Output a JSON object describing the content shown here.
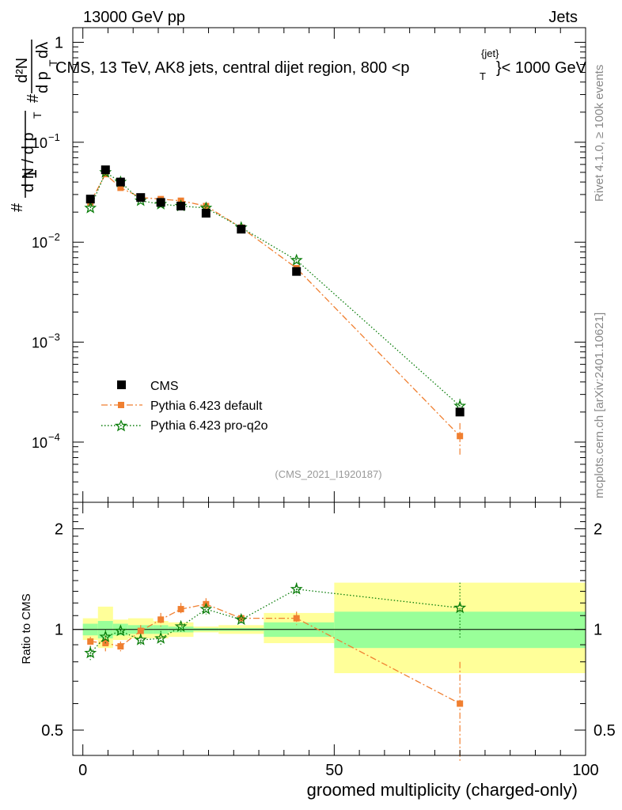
{
  "header": {
    "energy_label": "13000 GeV pp",
    "category_label": "Jets",
    "plot_title": "CMS, 13 TeV, AK8 jets, central dijet region, 800 <p",
    "plot_title_sup": "{jet}",
    "plot_title_sub": "T",
    "plot_title_end": "}< 1000 GeV",
    "watermark": "(CMS_2021_I1920187)",
    "side_label_rivet": "Rivet 4.1.0, ≥ 100k events",
    "side_label_mcplots": "mcplots.cern.ch [arXiv:2401.10621]"
  },
  "y_axis_main": {
    "numerator": "1",
    "denominator": "d N / d p",
    "den_sub": "T",
    "hash1": "#",
    "hash2": "#",
    "d2n": "d²N",
    "dpt": "d p",
    "dpt_sub": "T",
    "dlambda": "dλ",
    "ticks": [
      {
        "value": 1,
        "label": "1"
      },
      {
        "value": 0.1,
        "label": "10",
        "exp": "−1"
      },
      {
        "value": 0.01,
        "label": "10",
        "exp": "−2"
      },
      {
        "value": 0.001,
        "label": "10",
        "exp": "−3"
      },
      {
        "value": 0.0001,
        "label": "10",
        "exp": "−4"
      }
    ]
  },
  "y_axis_ratio": {
    "label": "Ratio to CMS",
    "ticks_left": [
      {
        "value": 2,
        "label": "2"
      },
      {
        "value": 1,
        "label": "1"
      },
      {
        "value": 0.5,
        "label": "0.5"
      }
    ],
    "ticks_right": [
      {
        "value": 2,
        "label": "2"
      },
      {
        "value": 1,
        "label": "1"
      },
      {
        "value": 0.5,
        "label": "0.5"
      }
    ]
  },
  "x_axis": {
    "label": "groomed multiplicity (charged-only)",
    "ticks": [
      {
        "value": 0,
        "label": "0"
      },
      {
        "value": 50,
        "label": "50"
      },
      {
        "value": 100,
        "label": "100"
      }
    ]
  },
  "legend": [
    {
      "key": "cms",
      "label": "CMS"
    },
    {
      "key": "default",
      "label": "Pythia 6.423 default"
    },
    {
      "key": "proq2o",
      "label": "Pythia 6.423 pro-q2o"
    }
  ],
  "colors": {
    "cms": "#000000",
    "default": "#f07f30",
    "proq2o": "#0a7d0a",
    "band_inner": "#99ff99",
    "band_outer": "#ffff99"
  },
  "chart_data": [
    {
      "type": "scatter",
      "title": "CMS, 13 TeV, AK8 jets, central dijet region, 800 < pT(jet) < 1000 GeV",
      "xlabel": "groomed multiplicity (charged-only)",
      "ylabel": "1/N dN/dλ",
      "yscale": "log",
      "xlim": [
        -2,
        100
      ],
      "ylim": [
        2.5e-05,
        1.4
      ],
      "x": [
        1.5,
        4.5,
        7.5,
        11.5,
        15.5,
        19.5,
        24.5,
        31.5,
        42.5,
        75
      ],
      "bins": [
        [
          0,
          3
        ],
        [
          3,
          6
        ],
        [
          6,
          9
        ],
        [
          9,
          14
        ],
        [
          14,
          17
        ],
        [
          17,
          22
        ],
        [
          22,
          27
        ],
        [
          27,
          36
        ],
        [
          36,
          50
        ],
        [
          50,
          100
        ]
      ],
      "series": [
        {
          "name": "CMS",
          "values": [
            0.027,
            0.053,
            0.04,
            0.028,
            0.025,
            0.023,
            0.0195,
            0.0135,
            0.0051,
            0.0002
          ]
        },
        {
          "name": "Pythia 6.423 default",
          "values": [
            0.025,
            0.048,
            0.035,
            0.028,
            0.027,
            0.026,
            0.023,
            0.014,
            0.0055,
            0.000115
          ],
          "errors": [
            0.001,
            0.002,
            0.0015,
            0.001,
            0.001,
            0.001,
            0.001,
            0.0006,
            0.0003,
            4e-05
          ]
        },
        {
          "name": "Pythia 6.423 pro-q2o",
          "values": [
            0.022,
            0.05,
            0.04,
            0.026,
            0.024,
            0.023,
            0.022,
            0.014,
            0.0066,
            0.00023
          ],
          "errors": [
            0.001,
            0.002,
            0.0015,
            0.001,
            0.001,
            0.001,
            0.001,
            0.0006,
            0.0003,
            4e-05
          ]
        }
      ]
    },
    {
      "type": "scatter",
      "title": "Ratio to CMS",
      "xlabel": "groomed multiplicity (charged-only)",
      "ylabel": "Ratio to CMS",
      "yscale": "log",
      "xlim": [
        -2,
        100
      ],
      "ylim": [
        0.42,
        2.4
      ],
      "x": [
        1.5,
        4.5,
        7.5,
        11.5,
        15.5,
        19.5,
        24.5,
        31.5,
        42.5,
        75
      ],
      "bands": [
        {
          "bin": [
            0,
            3
          ],
          "inner": [
            0.96,
            1.04
          ],
          "outer": [
            0.93,
            1.08
          ]
        },
        {
          "bin": [
            3,
            6
          ],
          "inner": [
            0.94,
            1.06
          ],
          "outer": [
            0.88,
            1.17
          ]
        },
        {
          "bin": [
            6,
            9
          ],
          "inner": [
            0.96,
            1.04
          ],
          "outer": [
            0.93,
            1.07
          ]
        },
        {
          "bin": [
            9,
            14
          ],
          "inner": [
            0.97,
            1.03
          ],
          "outer": [
            0.94,
            1.08
          ]
        },
        {
          "bin": [
            14,
            17
          ],
          "inner": [
            0.97,
            1.03
          ],
          "outer": [
            0.94,
            1.06
          ]
        },
        {
          "bin": [
            17,
            22
          ],
          "inner": [
            0.98,
            1.02
          ],
          "outer": [
            0.95,
            1.05
          ]
        },
        {
          "bin": [
            22,
            27
          ],
          "inner": [
            0.99,
            1.01
          ],
          "outer": [
            0.98,
            1.02
          ]
        },
        {
          "bin": [
            27,
            36
          ],
          "inner": [
            0.99,
            1.01
          ],
          "outer": [
            0.97,
            1.03
          ]
        },
        {
          "bin": [
            36,
            50
          ],
          "inner": [
            0.95,
            1.05
          ],
          "outer": [
            0.91,
            1.12
          ]
        },
        {
          "bin": [
            50,
            100
          ],
          "inner": [
            0.88,
            1.13
          ],
          "outer": [
            0.74,
            1.38
          ]
        }
      ],
      "series": [
        {
          "name": "Pythia 6.423 default",
          "values": [
            0.92,
            0.91,
            0.89,
            0.99,
            1.07,
            1.15,
            1.19,
            1.08,
            1.08,
            0.6
          ],
          "errors": [
            0.03,
            0.05,
            0.03,
            0.04,
            0.05,
            0.05,
            0.05,
            0.03,
            0.05,
            0.2
          ]
        },
        {
          "name": "Pythia 6.423 pro-q2o",
          "values": [
            0.85,
            0.95,
            0.99,
            0.93,
            0.94,
            1.02,
            1.15,
            1.07,
            1.32,
            1.16
          ],
          "errors": [
            0.04,
            0.05,
            0.03,
            0.04,
            0.05,
            0.04,
            0.04,
            0.03,
            0.06,
            0.22
          ]
        }
      ]
    }
  ]
}
